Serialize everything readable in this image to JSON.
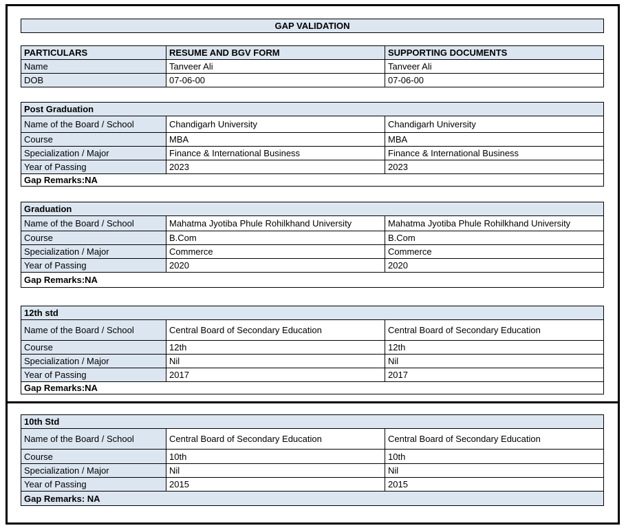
{
  "title": "GAP VALIDATION",
  "colors": {
    "accent_fill": "#dce6f1",
    "border": "#000000",
    "text": "#000000"
  },
  "header_table": {
    "columns": [
      "PARTICULARS",
      "RESUME AND BGV FORM",
      "SUPPORTING DOCUMENTS"
    ],
    "rows": [
      {
        "label": "Name",
        "resume_value": "Tanveer Ali",
        "supporting_value": "Tanveer Ali"
      },
      {
        "label": "DOB",
        "resume_value": "07-06-00",
        "supporting_value": "07-06-00"
      }
    ]
  },
  "sections": [
    {
      "name": "Post Graduation",
      "rows": [
        {
          "label": "Name of the Board / School",
          "resume_value": "Chandigarh University",
          "supporting_value": "Chandigarh University"
        },
        {
          "label": "Course",
          "resume_value": "MBA",
          "supporting_value": "MBA"
        },
        {
          "label": "Specialization / Major",
          "resume_value": "Finance & International Business",
          "supporting_value": "Finance & International Business"
        },
        {
          "label": "Year of Passing",
          "resume_value": "2023",
          "supporting_value": "2023"
        }
      ],
      "gap_remarks": "Gap Remarks:NA"
    },
    {
      "name": "Graduation",
      "rows": [
        {
          "label": "Name of the Board / School",
          "resume_value": "Mahatma Jyotiba Phule Rohilkhand University",
          "supporting_value": "Mahatma Jyotiba Phule Rohilkhand University"
        },
        {
          "label": "Course",
          "resume_value": "B.Com",
          "supporting_value": "B.Com"
        },
        {
          "label": "Specialization / Major",
          "resume_value": "Commerce",
          "supporting_value": "Commerce"
        },
        {
          "label": "Year of Passing",
          "resume_value": "2020",
          "supporting_value": "2020"
        }
      ],
      "gap_remarks": "Gap Remarks:NA"
    },
    {
      "name": "12th std",
      "rows": [
        {
          "label": "Name of the Board / School",
          "resume_value": "Central Board of Secondary Education",
          "supporting_value": "Central Board of Secondary Education"
        },
        {
          "label": "Course",
          "resume_value": "12th",
          "supporting_value": "12th"
        },
        {
          "label": "Specialization / Major",
          "resume_value": "Nil",
          "supporting_value": "Nil"
        },
        {
          "label": "Year of Passing",
          "resume_value": "2017",
          "supporting_value": "2017"
        }
      ],
      "gap_remarks": "Gap Remarks:NA"
    },
    {
      "name": "10th Std",
      "rows": [
        {
          "label": "Name of the Board / School",
          "resume_value": "Central Board of Secondary Education",
          "supporting_value": "Central Board of Secondary Education"
        },
        {
          "label": "Course",
          "resume_value": "10th",
          "supporting_value": "10th"
        },
        {
          "label": "Specialization / Major",
          "resume_value": "Nil",
          "supporting_value": "Nil"
        },
        {
          "label": "Year of Passing",
          "resume_value": "2015",
          "supporting_value": "2015"
        }
      ],
      "gap_remarks": "Gap Remarks: NA"
    }
  ]
}
